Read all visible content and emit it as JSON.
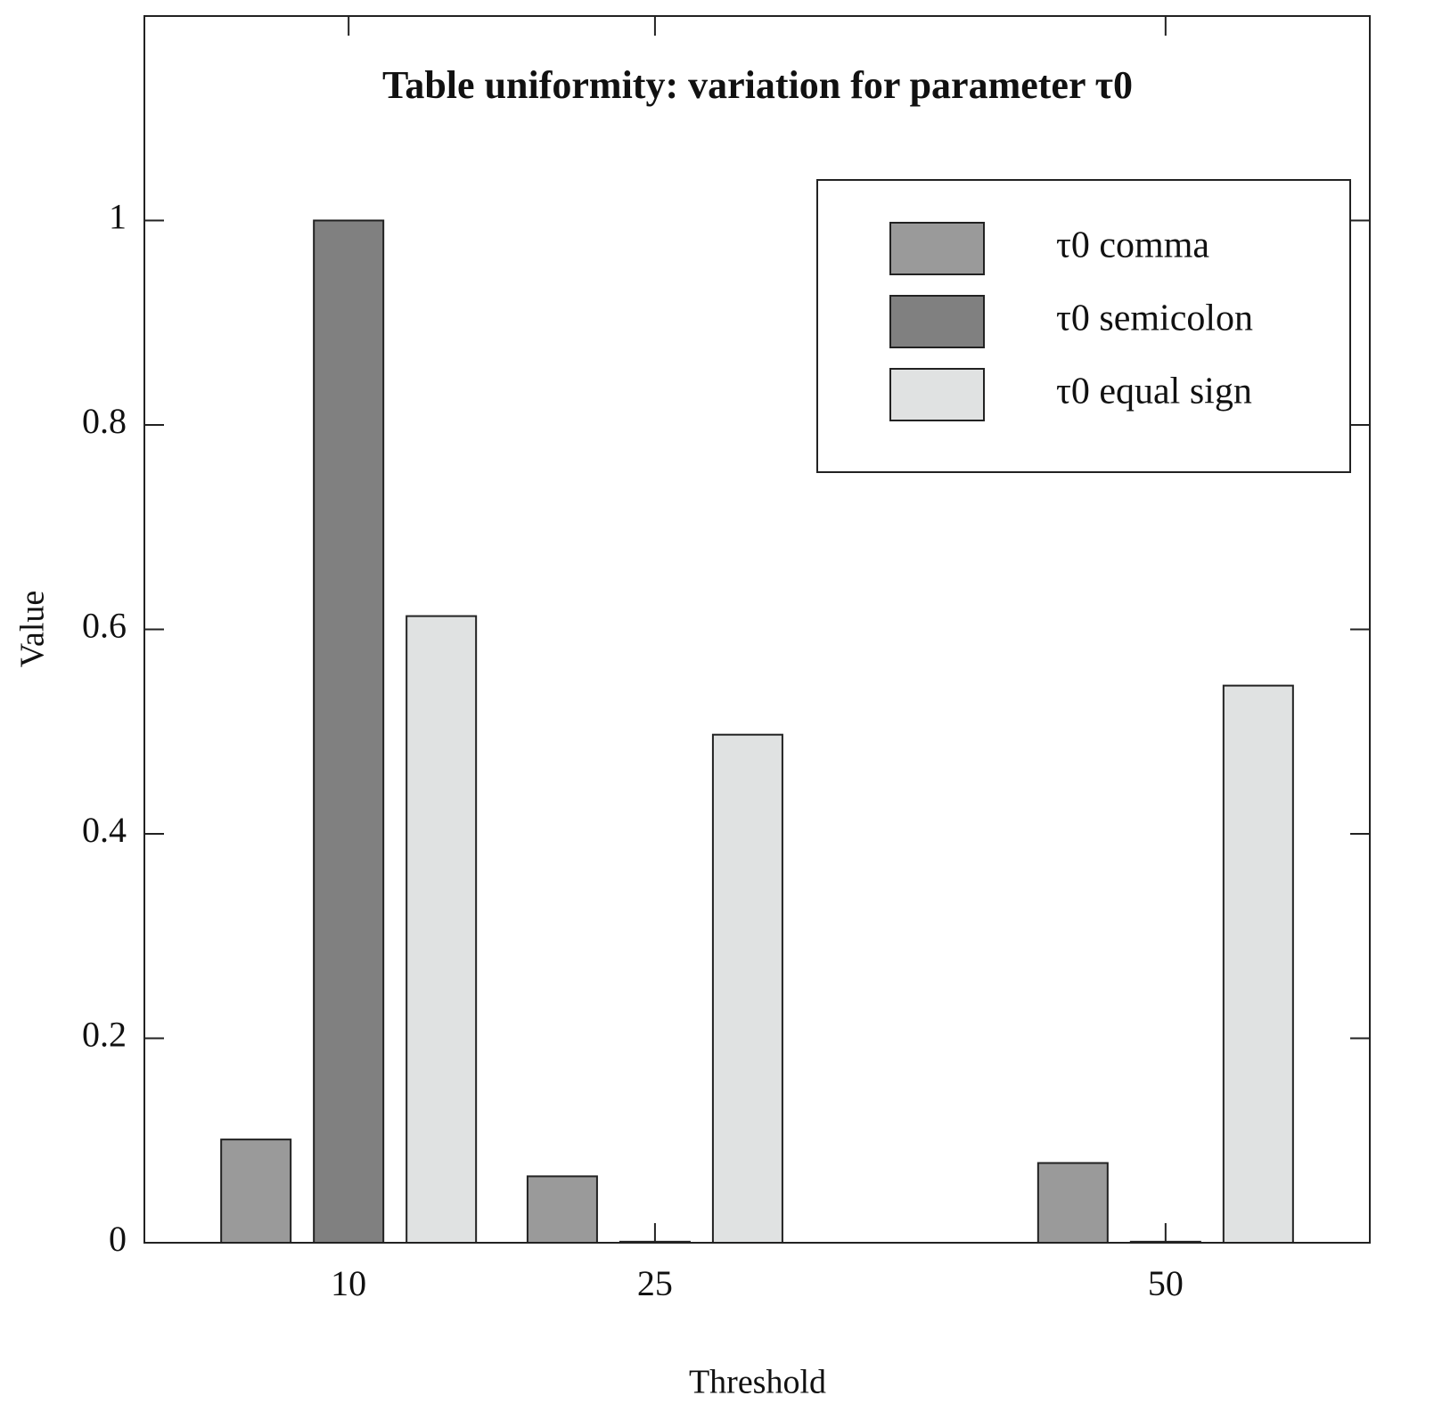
{
  "chart_data": {
    "type": "bar",
    "title": "Table uniformity: variation for parameter τ0",
    "x_label": "Threshold",
    "y_label": "Value",
    "x": [
      10,
      25,
      50
    ],
    "xlim": [
      0,
      60
    ],
    "xticks": [
      10,
      25,
      50
    ],
    "ylim": [
      0,
      1.2
    ],
    "yticks": [
      0,
      0.2,
      0.4,
      0.6,
      0.8,
      1
    ],
    "series": [
      {
        "name": "τ0 comma",
        "color": "#9a9a9a",
        "values": [
          0.101,
          0.065,
          0.078
        ]
      },
      {
        "name": "τ0 semicolon",
        "color": "#808080",
        "values": [
          1.0,
          0.001,
          0.001
        ]
      },
      {
        "name": "τ0 equal sign",
        "color": "#e0e2e2",
        "values": [
          0.613,
          0.497,
          0.545
        ]
      }
    ],
    "legend": "upper right"
  }
}
